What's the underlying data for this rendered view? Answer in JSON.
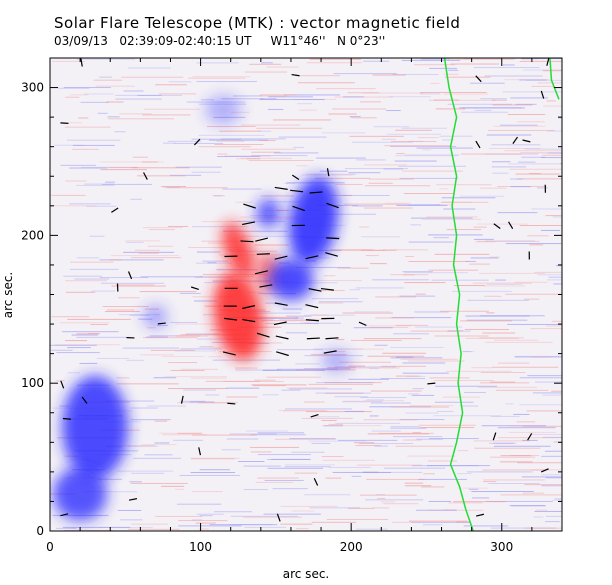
{
  "header": {
    "title": "Solar Flare Telescope (MTK) : vector magnetic field",
    "date": "03/09/13",
    "time_range": "02:39:09-02:40:15 UT",
    "longitude": "W11°46''",
    "latitude": "N 0°23''"
  },
  "axes": {
    "xlabel": "arc sec.",
    "ylabel": "arc sec.",
    "xlim": [
      0,
      340
    ],
    "ylim": [
      0,
      320
    ],
    "xticks": [
      "0",
      "100",
      "200",
      "300"
    ],
    "yticks": [
      "0",
      "100",
      "200",
      "300"
    ]
  },
  "colors": {
    "positive_polarity": "#ff2020",
    "negative_polarity": "#2020ff",
    "limb_line": "#22dd33",
    "vectors": "#000000"
  }
}
